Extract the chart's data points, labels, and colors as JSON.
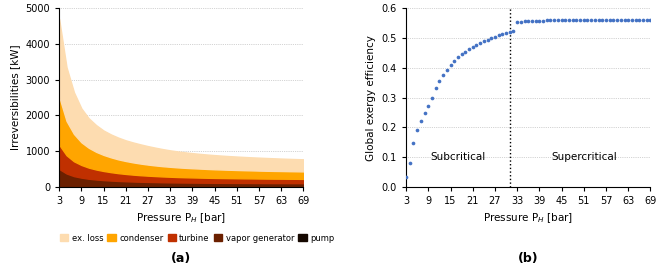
{
  "pressure_x": [
    3,
    5,
    7,
    9,
    11,
    13,
    15,
    17,
    19,
    21,
    23,
    25,
    27,
    29,
    31,
    33,
    35,
    37,
    39,
    41,
    43,
    45,
    47,
    49,
    51,
    53,
    55,
    57,
    59,
    61,
    63,
    65,
    67,
    69
  ],
  "pump": [
    25,
    18,
    14,
    12,
    10,
    9,
    8,
    8,
    7,
    7,
    6,
    6,
    6,
    6,
    5,
    5,
    5,
    5,
    5,
    5,
    5,
    5,
    5,
    5,
    5,
    5,
    5,
    5,
    5,
    5,
    5,
    5,
    5,
    5
  ],
  "vapor_generator": [
    480,
    360,
    290,
    250,
    220,
    200,
    185,
    172,
    162,
    154,
    147,
    141,
    136,
    132,
    128,
    125,
    122,
    120,
    118,
    116,
    114,
    112,
    111,
    110,
    109,
    108,
    107,
    106,
    105,
    104,
    104,
    103,
    103,
    102
  ],
  "turbine": [
    680,
    510,
    415,
    355,
    312,
    280,
    255,
    235,
    218,
    204,
    193,
    183,
    175,
    168,
    162,
    157,
    152,
    148,
    145,
    142,
    139,
    137,
    135,
    133,
    131,
    129,
    128,
    126,
    125,
    124,
    123,
    122,
    121,
    120
  ],
  "condenser": [
    1350,
    960,
    765,
    635,
    555,
    495,
    450,
    415,
    385,
    362,
    342,
    325,
    310,
    297,
    287,
    278,
    270,
    263,
    257,
    252,
    247,
    242,
    238,
    234,
    231,
    228,
    225,
    222,
    219,
    217,
    215,
    213,
    211,
    209
  ],
  "ex_loss_total": [
    4700,
    3350,
    2650,
    2200,
    1920,
    1730,
    1580,
    1470,
    1380,
    1305,
    1245,
    1192,
    1143,
    1100,
    1060,
    1025,
    996,
    970,
    947,
    927,
    908,
    892,
    877,
    864,
    852,
    841,
    830,
    821,
    812,
    803,
    795,
    788,
    781,
    775
  ],
  "color_ex_loss": "#FDDCB0",
  "color_condenser": "#FFA500",
  "color_turbine": "#C03000",
  "color_vapor_generator": "#6B2000",
  "color_pump": "#150800",
  "xticks": [
    3,
    9,
    15,
    21,
    27,
    33,
    39,
    45,
    51,
    57,
    63,
    69
  ],
  "ylim_a": [
    0,
    5000
  ],
  "yticks_a": [
    0,
    1000,
    2000,
    3000,
    4000,
    5000
  ],
  "legend_labels": [
    "ex. loss",
    "condenser",
    "turbine",
    "vapor generator",
    "pump"
  ],
  "xlabel": "Pressure P$_{H}$ [bar]",
  "ylabel_a": "Irreversibilities [kW]",
  "label_a": "(a)",
  "label_b": "(b)",
  "critical_pressure": 31.06,
  "efficiency_x": [
    3,
    4,
    5,
    6,
    7,
    8,
    9,
    10,
    11,
    12,
    13,
    14,
    15,
    16,
    17,
    18,
    19,
    20,
    21,
    22,
    23,
    24,
    25,
    26,
    27,
    28,
    29,
    30,
    31,
    32,
    33,
    34,
    35,
    36,
    37,
    38,
    39,
    40,
    41,
    42,
    43,
    44,
    45,
    46,
    47,
    48,
    49,
    50,
    51,
    52,
    53,
    54,
    55,
    56,
    57,
    58,
    59,
    60,
    61,
    62,
    63,
    64,
    65,
    66,
    67,
    68,
    69
  ],
  "efficiency_y": [
    0.035,
    0.082,
    0.148,
    0.192,
    0.22,
    0.25,
    0.272,
    0.298,
    0.332,
    0.355,
    0.375,
    0.393,
    0.41,
    0.423,
    0.435,
    0.445,
    0.454,
    0.463,
    0.471,
    0.478,
    0.484,
    0.49,
    0.495,
    0.5,
    0.505,
    0.509,
    0.513,
    0.517,
    0.521,
    0.524,
    0.553,
    0.555,
    0.556,
    0.557,
    0.557,
    0.558,
    0.558,
    0.558,
    0.559,
    0.559,
    0.559,
    0.559,
    0.559,
    0.559,
    0.56,
    0.56,
    0.56,
    0.56,
    0.56,
    0.56,
    0.56,
    0.56,
    0.56,
    0.56,
    0.56,
    0.56,
    0.56,
    0.56,
    0.56,
    0.56,
    0.56,
    0.56,
    0.56,
    0.56,
    0.56,
    0.56,
    0.56
  ],
  "ylim_b": [
    0,
    0.6
  ],
  "yticks_b": [
    0.0,
    0.1,
    0.2,
    0.3,
    0.4,
    0.5,
    0.6
  ],
  "ylabel_b": "Global exergy efficiency",
  "dot_color": "#4472C4",
  "text_subcritical": "Subcritical",
  "text_supercritical": "Supercritical",
  "figsize": [
    6.57,
    2.75
  ],
  "dpi": 100
}
